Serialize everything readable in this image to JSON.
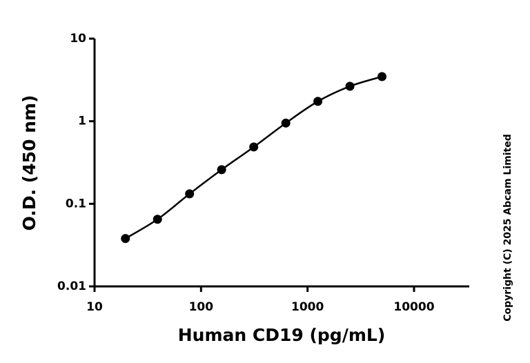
{
  "chart_data": {
    "type": "scatter",
    "x_label": "Human CD19 (pg/mL)",
    "y_label": "O.D. (450 nm)",
    "copyright": "Copyright (C) 2025 Abcam Limited",
    "x_scale": "log",
    "y_scale": "log",
    "xlim": [
      10,
      33000
    ],
    "ylim": [
      0.01,
      10
    ],
    "xticks": [
      10,
      100,
      1000,
      10000
    ],
    "yticks": [
      0.01,
      0.1,
      1,
      10
    ],
    "fit_curve": true,
    "series": [
      {
        "name": "Human CD19",
        "color": "#000000",
        "x": [
          19.5,
          39,
          78,
          156,
          312.5,
          625,
          1250,
          2500,
          5000
        ],
        "values": [
          0.038,
          0.065,
          0.132,
          0.259,
          0.488,
          0.95,
          1.74,
          2.65,
          3.47
        ]
      }
    ]
  }
}
